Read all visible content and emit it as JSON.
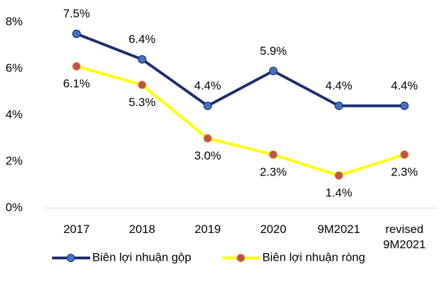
{
  "chart_data": {
    "type": "line",
    "categories": [
      "2017",
      "2018",
      "2019",
      "2020",
      "9M2021",
      "revised 9M2021"
    ],
    "series": [
      {
        "name": "Biên lợi nhuận gộp",
        "color": "#1f2f6e",
        "marker_color": "#4472c4",
        "values": [
          7.5,
          6.4,
          4.4,
          5.9,
          4.4,
          4.4
        ],
        "value_labels": [
          "7.5%",
          "6.4%",
          "4.4%",
          "5.9%",
          "4.4%",
          "4.4%"
        ]
      },
      {
        "name": "Biên lợi nhuận ròng",
        "color": "#ffff00",
        "marker_color": "#c0504d",
        "values": [
          6.1,
          5.3,
          3.0,
          2.3,
          1.4,
          2.3
        ],
        "value_labels": [
          "6.1%",
          "5.3%",
          "3.0%",
          "2.3%",
          "1.4%",
          "2.3%"
        ]
      }
    ],
    "ylim": [
      0,
      8
    ],
    "yticks": [
      {
        "value": 0,
        "label": "0%"
      },
      {
        "value": 2,
        "label": "2%"
      },
      {
        "value": 4,
        "label": "4%"
      },
      {
        "value": 6,
        "label": "6%"
      },
      {
        "value": 8,
        "label": "8%"
      }
    ],
    "legend": "bottom"
  }
}
